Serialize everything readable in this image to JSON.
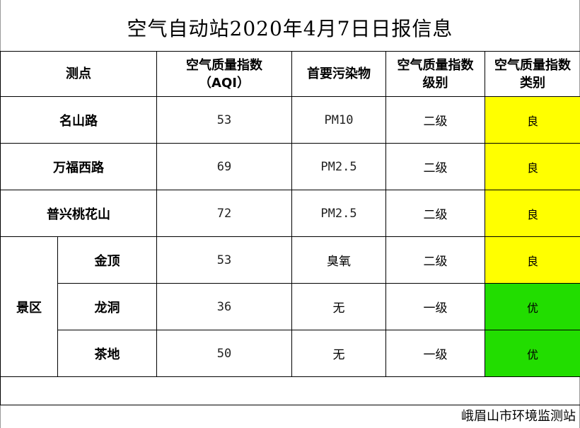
{
  "title": "空气自动站2020年4月7日日报信息",
  "headers": {
    "site": "测点",
    "aqi": "空气质量指数\n（AQI）",
    "pollutant": "首要污染物",
    "level": "空气质量指数\n级别",
    "category": "空气质量指数\n类别"
  },
  "rows": [
    {
      "name": "名山路",
      "aqi": "53",
      "pollutant": "PM10",
      "level": "二级",
      "category": "良"
    },
    {
      "name": "万福西路",
      "aqi": "69",
      "pollutant": "PM2.5",
      "level": "二级",
      "category": "良"
    },
    {
      "name": "普兴桃花山",
      "aqi": "72",
      "pollutant": "PM2.5",
      "level": "二级",
      "category": "良"
    }
  ],
  "scenic": {
    "group_label": "景区",
    "rows": [
      {
        "name": "金顶",
        "aqi": "53",
        "pollutant": "臭氧",
        "level": "二级",
        "category": "良"
      },
      {
        "name": "龙洞",
        "aqi": "36",
        "pollutant": "无",
        "level": "一级",
        "category": "优"
      },
      {
        "name": "茶地",
        "aqi": "50",
        "pollutant": "无",
        "level": "一级",
        "category": "优"
      }
    ]
  },
  "colors": {
    "good": "#ffff00",
    "excellent": "#22dd00"
  },
  "footer": "峨眉山市环境监测站"
}
